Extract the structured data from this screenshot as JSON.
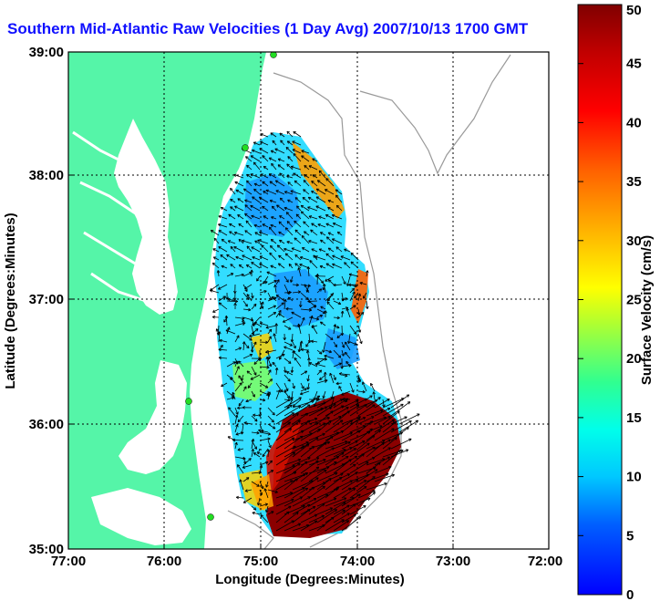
{
  "title": "Southern Mid-Atlantic Raw Velocities (1 Day Avg) 2007/10/13 1700 GMT",
  "axes": {
    "xlabel": "Longitude (Degrees:Minutes)",
    "ylabel": "Latitude (Degrees:Minutes)",
    "xticks": [
      "77:00",
      "76:00",
      "75:00",
      "74:00",
      "73:00",
      "72:00"
    ],
    "yticks": [
      "39:00",
      "38:00",
      "37:00",
      "36:00",
      "35:00"
    ],
    "xlim": [
      -77,
      -72
    ],
    "ylim": [
      35,
      39
    ]
  },
  "colorbar": {
    "label": "Surface Velocity (cm/s)",
    "ticks": [
      "0",
      "5",
      "10",
      "15",
      "20",
      "25",
      "30",
      "35",
      "40",
      "45",
      "50"
    ],
    "range": [
      0,
      50
    ]
  },
  "colors": {
    "land": "#55f5a8",
    "title": "#1010ff",
    "station": "#22dd22"
  }
}
